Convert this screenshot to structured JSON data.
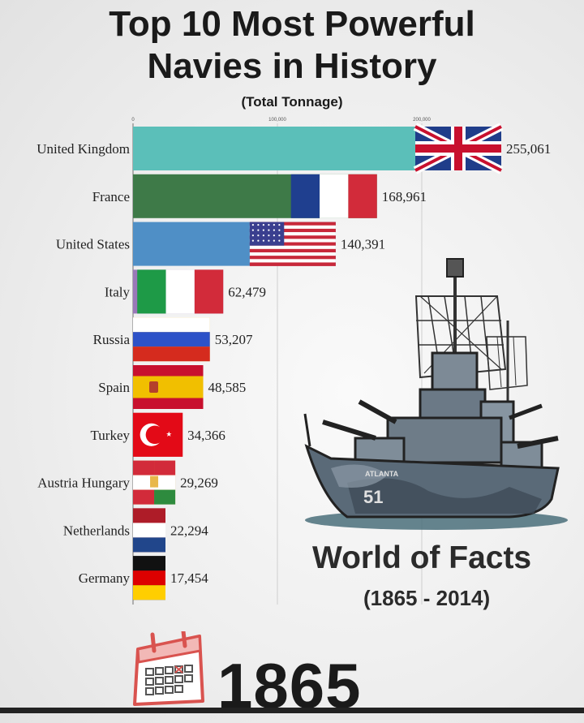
{
  "header": {
    "title_line1": "Top 10 Most Powerful",
    "title_line2": "Navies in History",
    "subtitle": "(Total Tonnage)"
  },
  "chart_data": {
    "type": "bar",
    "orientation": "horizontal",
    "title": "Top 10 Most Powerful Navies in History",
    "subtitle": "(Total Tonnage)",
    "xlim": [
      0,
      255061
    ],
    "x_ticks": [
      {
        "value": 0,
        "label": "0"
      },
      {
        "value": 100000,
        "label": "100,000"
      },
      {
        "value": 200000,
        "label": "200,000"
      }
    ],
    "categories": [
      "United Kingdom",
      "France",
      "United States",
      "Italy",
      "Russia",
      "Spain",
      "Turkey",
      "Austria Hungary",
      "Netherlands",
      "Germany"
    ],
    "values": [
      255061,
      168961,
      140391,
      62479,
      53207,
      48585,
      34366,
      29269,
      22294,
      17454
    ],
    "value_labels": [
      "255,061",
      "168,961",
      "140,391",
      "62,479",
      "53,207",
      "48,585",
      "34,366",
      "29,269",
      "22,294",
      "17,454"
    ],
    "bar_colors": [
      "#5bbfb9",
      "#3e7a48",
      "#4f8fc6",
      "#9a78b8",
      "#e8b84a",
      "#c0392b",
      "#cc2a2a",
      "#e8b84a",
      "#b03040",
      "#222222"
    ],
    "flags": [
      "uk-flag",
      "france-flag",
      "usa-flag",
      "italy-flag",
      "russia-flag",
      "spain-flag",
      "turkey-flag",
      "austria-hungary-flag",
      "netherlands-flag",
      "germany-flag"
    ],
    "current_year": "1865"
  },
  "brand": {
    "name": "World of Facts",
    "years": "(1865 - 2014)"
  },
  "ship": {
    "hull_number": "51",
    "hull_name": "ATLANTA"
  },
  "year_display": "1865"
}
